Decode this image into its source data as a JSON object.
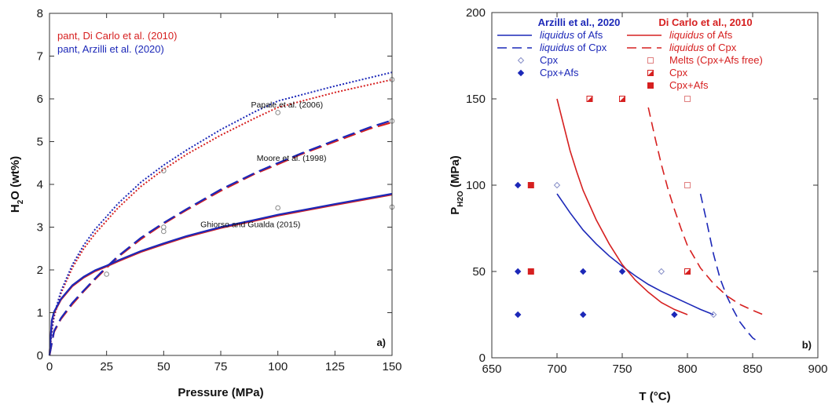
{
  "chart_data": [
    {
      "type": "line",
      "panel_label": "a)",
      "xlabel": "Pressure (MPa)",
      "ylabel_main": "H",
      "ylabel_sub": "2",
      "ylabel_rest": "O (wt%)",
      "xlim": [
        0,
        150
      ],
      "ylim": [
        0,
        8
      ],
      "xticks": [
        "0",
        "25",
        "50",
        "75",
        "100",
        "125",
        "150"
      ],
      "yticks": [
        "0",
        "1",
        "2",
        "3",
        "4",
        "5",
        "6",
        "7",
        "8"
      ],
      "legend": [
        {
          "label": "pant, Di Carlo et al. (2010)",
          "color": "#d62020"
        },
        {
          "label": "pant, Arzilli et al. (2020)",
          "color": "#1c28b8"
        }
      ],
      "annotations": [
        {
          "text": "Papale et al. (2006)",
          "x": 104,
          "y": 5.8
        },
        {
          "text": "Moore et al. (1998)",
          "x": 106,
          "y": 4.55
        },
        {
          "text": "Ghiorso and Gualda (2015)",
          "x": 88,
          "y": 3.0
        }
      ],
      "series": [
        {
          "model": "Papale et al. (2006)",
          "composition": "pant, Di Carlo et al. (2010)",
          "color": "#d62020",
          "style": "dotted",
          "x": [
            0,
            1,
            2,
            5,
            10,
            15,
            20,
            25,
            30,
            40,
            50,
            60,
            75,
            90,
            100,
            125,
            150
          ],
          "y": [
            0,
            0.55,
            0.9,
            1.45,
            2.05,
            2.5,
            2.85,
            3.15,
            3.45,
            3.95,
            4.35,
            4.7,
            5.15,
            5.55,
            5.8,
            6.15,
            6.45
          ]
        },
        {
          "model": "Papale et al. (2006)",
          "composition": "pant, Arzilli et al. (2020)",
          "color": "#1c28b8",
          "style": "dotted",
          "x": [
            0,
            1,
            2,
            5,
            10,
            15,
            20,
            25,
            30,
            40,
            50,
            60,
            75,
            90,
            100,
            125,
            150
          ],
          "y": [
            0,
            0.6,
            0.95,
            1.5,
            2.12,
            2.58,
            2.95,
            3.25,
            3.55,
            4.05,
            4.45,
            4.8,
            5.28,
            5.7,
            5.95,
            6.3,
            6.62
          ]
        },
        {
          "model": "Moore et al. (1998)",
          "composition": "pant, Di Carlo et al. (2010)",
          "color": "#d62020",
          "style": "dashed",
          "x": [
            0,
            2,
            5,
            10,
            15,
            20,
            25,
            30,
            40,
            50,
            60,
            75,
            90,
            100,
            110,
            125,
            140,
            150
          ],
          "y": [
            0,
            0.55,
            0.85,
            1.2,
            1.5,
            1.78,
            2.05,
            2.3,
            2.72,
            3.08,
            3.4,
            3.85,
            4.25,
            4.47,
            4.7,
            5.0,
            5.3,
            5.45
          ]
        },
        {
          "model": "Moore et al. (1998)",
          "composition": "pant, Arzilli et al. (2020)",
          "color": "#1c28b8",
          "style": "dashed",
          "x": [
            0,
            2,
            5,
            10,
            15,
            20,
            25,
            30,
            40,
            50,
            60,
            75,
            90,
            100,
            110,
            125,
            140,
            150
          ],
          "y": [
            0,
            0.57,
            0.87,
            1.23,
            1.52,
            1.8,
            2.07,
            2.32,
            2.75,
            3.1,
            3.42,
            3.88,
            4.27,
            4.5,
            4.72,
            5.03,
            5.33,
            5.5
          ]
        },
        {
          "model": "Ghiorso and Gualda (2015)",
          "composition": "pant, Di Carlo et al. (2010)",
          "color": "#d62020",
          "style": "solid",
          "x": [
            0,
            1,
            2,
            5,
            10,
            15,
            20,
            25,
            30,
            40,
            50,
            60,
            75,
            90,
            100,
            125,
            150
          ],
          "y": [
            0,
            0.8,
            1.0,
            1.3,
            1.62,
            1.82,
            1.97,
            2.08,
            2.2,
            2.42,
            2.6,
            2.77,
            2.98,
            3.15,
            3.27,
            3.52,
            3.76
          ]
        },
        {
          "model": "Ghiorso and Gualda (2015)",
          "composition": "pant, Arzilli et al. (2020)",
          "color": "#1c28b8",
          "style": "solid",
          "x": [
            0,
            1,
            2,
            5,
            10,
            15,
            20,
            25,
            30,
            40,
            50,
            60,
            75,
            90,
            100,
            125,
            150
          ],
          "y": [
            0,
            0.82,
            1.02,
            1.32,
            1.64,
            1.84,
            1.99,
            2.1,
            2.22,
            2.44,
            2.62,
            2.79,
            3.0,
            3.17,
            3.29,
            3.54,
            3.78
          ]
        }
      ],
      "points": {
        "marker": "open-circle",
        "color": "#888888",
        "x": [
          25,
          50,
          50,
          50,
          100,
          100,
          150,
          150,
          150
        ],
        "y": [
          1.9,
          4.32,
          3.0,
          2.9,
          3.45,
          5.68,
          3.47,
          5.48,
          6.45
        ]
      }
    },
    {
      "type": "scatter",
      "panel_label": "b)",
      "xlabel": "T (°C)",
      "ylabel_main": "P",
      "ylabel_sub": "H2O",
      "ylabel_rest": " (MPa)",
      "xlim": [
        650,
        900
      ],
      "ylim": [
        0,
        200
      ],
      "xticks": [
        "650",
        "700",
        "750",
        "800",
        "850",
        "900"
      ],
      "yticks": [
        "0",
        "50",
        "100",
        "150",
        "200"
      ],
      "legend_groups": [
        {
          "title": "Arzilli et al., 2020",
          "color": "#1c28b8",
          "items": [
            {
              "italic": "liquidus",
              "rest": " of Afs",
              "symbol": "solid-line"
            },
            {
              "italic": "liquidus",
              "rest": " of Cpx",
              "symbol": "dashed-line"
            },
            {
              "italic": "",
              "rest": "Cpx",
              "symbol": "open-diamond"
            },
            {
              "italic": "",
              "rest": "Cpx+Afs",
              "symbol": "filled-diamond"
            }
          ]
        },
        {
          "title": "Di Carlo et al., 2010",
          "color": "#d62020",
          "items": [
            {
              "italic": "liquidus",
              "rest": " of Afs",
              "symbol": "solid-line"
            },
            {
              "italic": "liquidus",
              "rest": " of Cpx",
              "symbol": "dashed-line"
            },
            {
              "italic": "",
              "rest": "Melts (Cpx+Afs free)",
              "symbol": "open-square"
            },
            {
              "italic": "",
              "rest": "Cpx",
              "symbol": "half-square"
            },
            {
              "italic": "",
              "rest": "Cpx+Afs",
              "symbol": "filled-square"
            }
          ]
        }
      ],
      "curves": [
        {
          "name": "liquidus of Afs",
          "group": "Arzilli et al., 2020",
          "color": "#1c28b8",
          "style": "solid",
          "x": [
            700,
            710,
            720,
            730,
            740,
            750,
            760,
            770,
            780,
            790,
            800,
            810,
            820
          ],
          "y": [
            95,
            84,
            74,
            66,
            59,
            53,
            47.5,
            42.5,
            38.5,
            35,
            31.5,
            28,
            25
          ]
        },
        {
          "name": "liquidus of Cpx",
          "group": "Arzilli et al., 2020",
          "color": "#1c28b8",
          "style": "dashed",
          "x": [
            810,
            815,
            820,
            825,
            830,
            835,
            840,
            845,
            850,
            853
          ],
          "y": [
            95,
            78,
            60,
            46,
            36,
            28,
            21,
            16,
            11.5,
            10
          ]
        },
        {
          "name": "liquidus of Afs",
          "group": "Di Carlo et al., 2010",
          "color": "#d62020",
          "style": "solid",
          "x": [
            700,
            705,
            710,
            715,
            720,
            730,
            740,
            750,
            760,
            770,
            780,
            790,
            800
          ],
          "y": [
            150,
            135,
            120,
            108,
            97,
            80,
            66,
            54,
            45,
            38,
            32,
            28,
            25
          ]
        },
        {
          "name": "liquidus of Cpx",
          "group": "Di Carlo et al., 2010",
          "color": "#d62020",
          "style": "dashed",
          "x": [
            770,
            775,
            780,
            785,
            790,
            795,
            800,
            810,
            820,
            830,
            840,
            850,
            858
          ],
          "y": [
            145,
            128,
            112,
            98,
            86,
            75,
            65,
            52,
            43,
            36,
            31,
            27.5,
            25
          ]
        }
      ],
      "markers": [
        {
          "group": "Arzilli et al., 2020",
          "phase": "Cpx",
          "symbol": "open-diamond",
          "color": "#1c28b8",
          "x": [
            700,
            780,
            820
          ],
          "y": [
            100,
            50,
            25
          ]
        },
        {
          "group": "Arzilli et al., 2020",
          "phase": "Cpx+Afs",
          "symbol": "filled-diamond",
          "color": "#1c28b8",
          "x": [
            670,
            670,
            670,
            720,
            720,
            750,
            790
          ],
          "y": [
            100,
            50,
            25,
            50,
            25,
            50,
            25
          ]
        },
        {
          "group": "Di Carlo et al., 2010",
          "phase": "Melts (Cpx+Afs free)",
          "symbol": "open-square",
          "color": "#d62020",
          "x": [
            800,
            800
          ],
          "y": [
            150,
            100
          ]
        },
        {
          "group": "Di Carlo et al., 2010",
          "phase": "Cpx",
          "symbol": "half-square",
          "color": "#d62020",
          "x": [
            725,
            750,
            800
          ],
          "y": [
            150,
            150,
            50
          ]
        },
        {
          "group": "Di Carlo et al., 2010",
          "phase": "Cpx+Afs",
          "symbol": "filled-square",
          "color": "#d62020",
          "x": [
            680,
            680
          ],
          "y": [
            100,
            50
          ]
        }
      ]
    }
  ]
}
